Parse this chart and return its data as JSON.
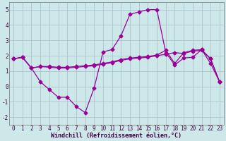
{
  "xlabel": "Windchill (Refroidissement éolien,°C)",
  "x": [
    0,
    1,
    2,
    3,
    4,
    5,
    6,
    7,
    8,
    9,
    10,
    11,
    12,
    13,
    14,
    15,
    16,
    17,
    18,
    19,
    20,
    21,
    22,
    23
  ],
  "line1": [
    1.8,
    1.9,
    1.2,
    0.3,
    -0.2,
    -0.7,
    -0.7,
    -1.3,
    -1.7,
    -0.1,
    2.25,
    2.4,
    3.3,
    4.7,
    4.85,
    5.0,
    5.0,
    2.2,
    1.4,
    1.85,
    1.9,
    2.4,
    1.8,
    0.3
  ],
  "line2": [
    1.8,
    1.9,
    1.2,
    1.3,
    1.3,
    1.25,
    1.25,
    1.3,
    1.35,
    1.4,
    1.5,
    1.6,
    1.75,
    1.85,
    1.9,
    1.95,
    2.05,
    2.35,
    1.5,
    2.2,
    2.35,
    2.4,
    1.5,
    0.3
  ],
  "line3": [
    1.8,
    1.9,
    1.2,
    1.3,
    1.25,
    1.2,
    1.2,
    1.25,
    1.3,
    1.35,
    1.45,
    1.55,
    1.7,
    1.8,
    1.85,
    1.9,
    2.0,
    2.1,
    2.2,
    2.15,
    2.3,
    2.35,
    1.8,
    0.3
  ],
  "line_color": "#990099",
  "bg_color": "#cce8e8",
  "grid_color": "#aabbcc",
  "ylim": [
    -2.5,
    5.5
  ],
  "xlim": [
    -0.5,
    23.5
  ],
  "yticks": [
    -2,
    -1,
    0,
    1,
    2,
    3,
    4,
    5
  ],
  "xticks": [
    0,
    1,
    2,
    3,
    4,
    5,
    6,
    7,
    8,
    9,
    10,
    11,
    12,
    13,
    14,
    15,
    16,
    17,
    18,
    19,
    20,
    21,
    22,
    23
  ],
  "tick_fontsize": 5.5,
  "xlabel_fontsize": 6.0,
  "marker_size": 2.5,
  "linewidth": 0.9
}
